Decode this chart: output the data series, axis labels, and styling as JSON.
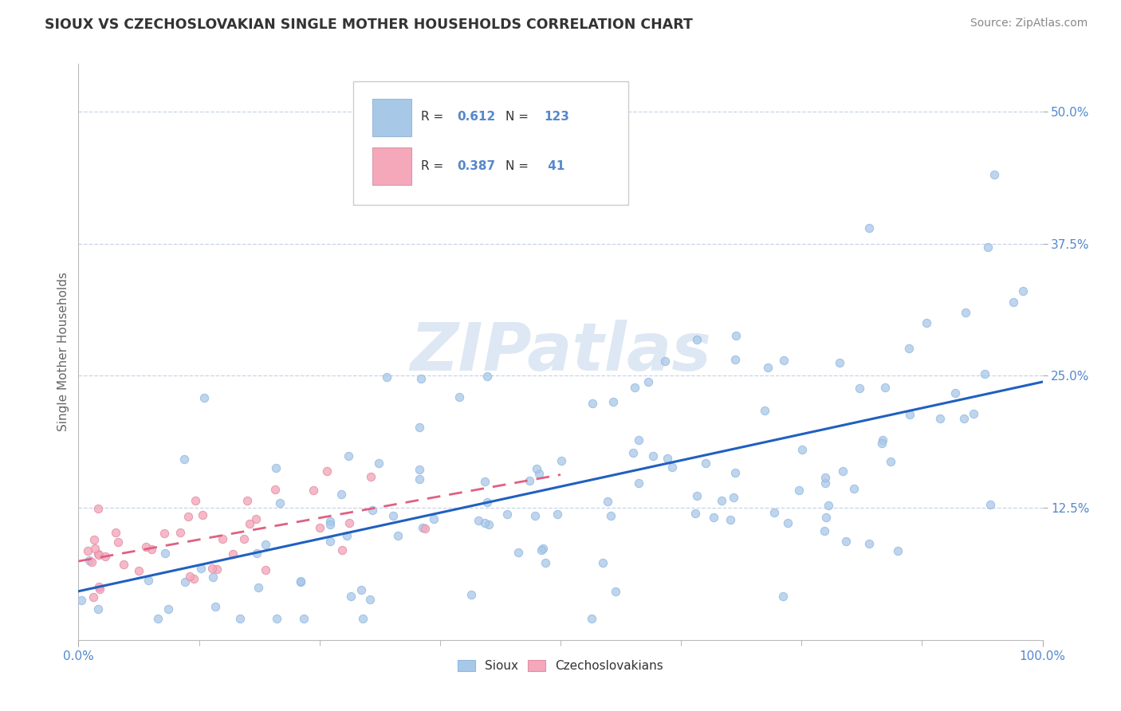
{
  "title": "SIOUX VS CZECHOSLOVAKIAN SINGLE MOTHER HOUSEHOLDS CORRELATION CHART",
  "source_text": "Source: ZipAtlas.com",
  "ylabel": "Single Mother Households",
  "xlim": [
    0.0,
    1.0
  ],
  "ylim": [
    0.0,
    0.545
  ],
  "xtick_labels": [
    "0.0%",
    "100.0%"
  ],
  "ytick_labels": [
    "12.5%",
    "25.0%",
    "37.5%",
    "50.0%"
  ],
  "ytick_values": [
    0.125,
    0.25,
    0.375,
    0.5
  ],
  "sioux_color": "#a8c8e8",
  "czech_color": "#f4a8ba",
  "sioux_line_color": "#2060c0",
  "czech_line_color": "#e06080",
  "background_color": "#ffffff",
  "grid_color": "#c8d4e8",
  "title_color": "#333333",
  "axis_label_color": "#5588cc",
  "watermark_color": "#dde8f4",
  "sioux_line_intercept": 0.068,
  "sioux_line_slope": 0.155,
  "czech_line_intercept": 0.075,
  "czech_line_slope": 0.185
}
